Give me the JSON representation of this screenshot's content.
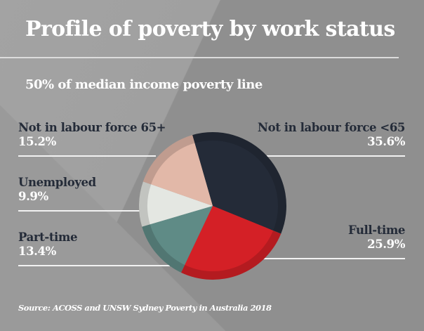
{
  "title": "Profile of poverty by work status",
  "subtitle": "50% of median income poverty line",
  "source": "Source: ACOSS and UNSW Sydney Poverty in Australia 2018",
  "colors": {
    "background": "#8f8f8f",
    "label_name": "#242b38",
    "label_value": "#ffffff"
  },
  "labels": {
    "nilf65plus": {
      "name": "Not in labour force 65+",
      "value": "15.2%"
    },
    "unemployed": {
      "name": "Unemployed",
      "value": "9.9%"
    },
    "parttime": {
      "name": "Part-time",
      "value": "13.4%"
    },
    "nilfunder65": {
      "name": "Not in labour force <65",
      "value": "35.6%"
    },
    "fulltime": {
      "name": "Full-time",
      "value": "25.9%"
    }
  },
  "chart_data": {
    "type": "pie",
    "title": "Profile of poverty by work status",
    "subtitle": "50% of median income poverty line",
    "categories": [
      "Not in labour force <65",
      "Full-time",
      "Part-time",
      "Unemployed",
      "Not in labour force 65+"
    ],
    "values": [
      35.6,
      25.9,
      13.4,
      9.9,
      15.2
    ],
    "unit": "%",
    "colors": [
      "#242b38",
      "#d42026",
      "#5f8b86",
      "#e4e7e2",
      "#e2b8a8"
    ],
    "start_angle_deg": -16,
    "direction": "clockwise",
    "legend_position": "labels around pie",
    "source": "Source: ACOSS and UNSW Sydney Poverty in Australia 2018"
  }
}
